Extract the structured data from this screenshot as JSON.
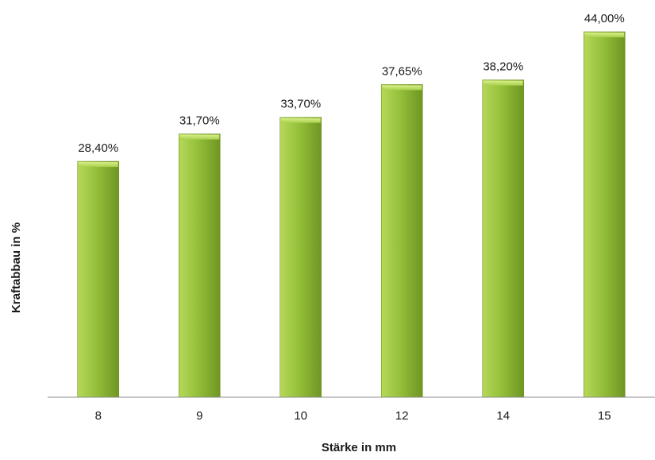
{
  "chart_data": {
    "type": "bar",
    "categories": [
      "8",
      "9",
      "10",
      "12",
      "14",
      "15"
    ],
    "values": [
      28.4,
      31.7,
      33.7,
      37.65,
      38.2,
      44.0
    ],
    "data_labels": [
      "28,40%",
      "31,70%",
      "33,70%",
      "37,65%",
      "38,20%",
      "44,00%"
    ],
    "title": "",
    "xlabel": "Stärke in mm",
    "ylabel": "Kraftabbau in %",
    "ylim": [
      0,
      44
    ],
    "grid": false,
    "legend": "none",
    "colors": {
      "bar_light": "#b6d85a",
      "bar_mid": "#95c03a",
      "bar_dark": "#6f9523",
      "axis": "#8c8c8c"
    }
  }
}
